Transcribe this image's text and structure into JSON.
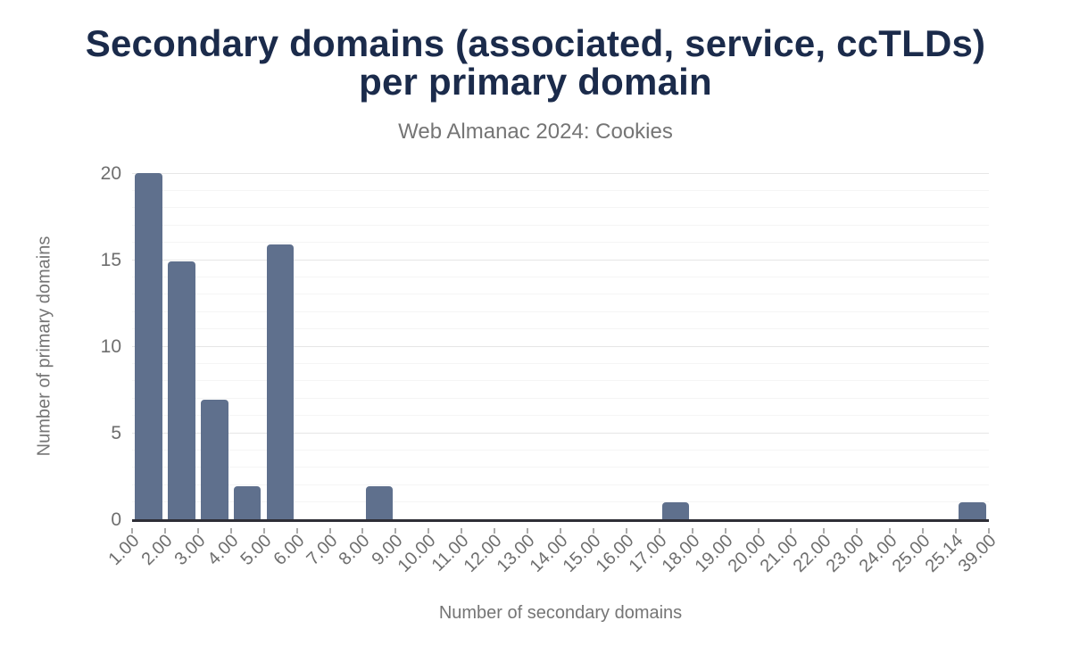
{
  "title": {
    "line1": "Secondary domains (associated, service, ccTLDs)",
    "line2": "per primary domain"
  },
  "subtitle": "Web Almanac 2024: Cookies",
  "chart_data": {
    "type": "bar",
    "title": "Secondary domains (associated, service, ccTLDs) per primary domain",
    "subtitle": "Web Almanac 2024: Cookies",
    "xlabel": "Number of secondary domains",
    "ylabel": "Number of primary domains",
    "categories": [
      "1.00",
      "2.00",
      "3.00",
      "4.00",
      "5.00",
      "6.00",
      "7.00",
      "8.00",
      "9.00",
      "10.00",
      "11.00",
      "12.00",
      "13.00",
      "14.00",
      "15.00",
      "16.00",
      "17.00",
      "18.00",
      "19.00",
      "20.00",
      "21.00",
      "22.00",
      "23.00",
      "24.00",
      "25.00",
      "25.14"
    ],
    "values": [
      20,
      14.9,
      6.9,
      1.9,
      15.9,
      0,
      0,
      1.9,
      0,
      0,
      0,
      0,
      0,
      0,
      0,
      0,
      1,
      0,
      0,
      0,
      0,
      0,
      0,
      0,
      0,
      1
    ],
    "boundary_labels": [
      "1.00",
      "2.00",
      "3.00",
      "4.00",
      "5.00",
      "6.00",
      "7.00",
      "8.00",
      "9.00",
      "10.00",
      "11.00",
      "12.00",
      "13.00",
      "14.00",
      "15.00",
      "16.00",
      "17.00",
      "18.00",
      "19.00",
      "20.00",
      "21.00",
      "22.00",
      "23.00",
      "24.00",
      "25.00",
      "25.14",
      "39.00"
    ],
    "ylim": [
      0,
      20
    ],
    "yticks": [
      0,
      5,
      10,
      15,
      20
    ],
    "grid": {
      "minor_interval": 1,
      "major_interval": 5,
      "horizontal_only": true
    },
    "legend": "none",
    "x_label_rotation": -45,
    "colors": {
      "bar": "#5f708d",
      "title": "#1b2b4b",
      "subtitle": "#757575",
      "axis_label": "#6e6e6e",
      "axis_title": "#757575",
      "axis_line": "#2e2e36",
      "grid_major": "#e6e6e6",
      "grid_minor": "#f5f5f5",
      "tick": "#aaaaaa",
      "background": "#ffffff"
    }
  }
}
